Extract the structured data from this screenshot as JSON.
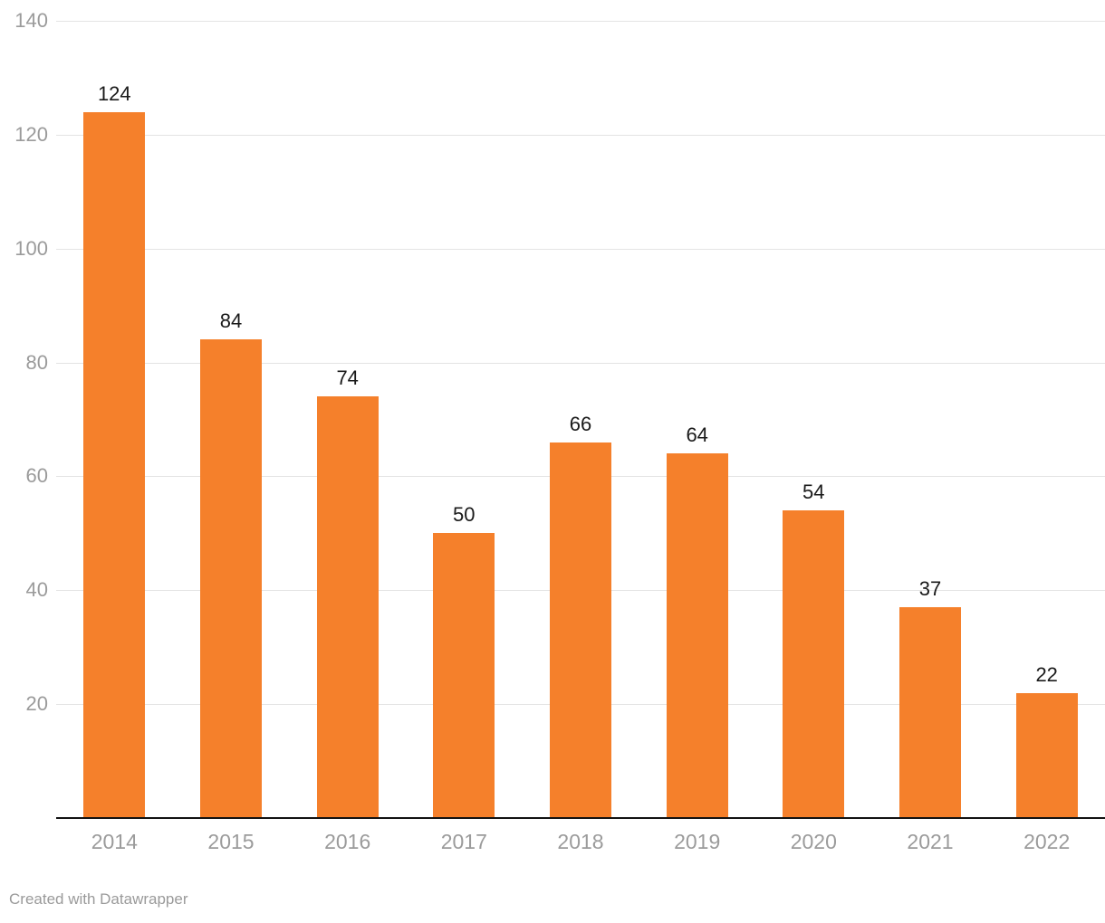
{
  "chart_data": {
    "type": "bar",
    "categories": [
      "2014",
      "2015",
      "2016",
      "2017",
      "2018",
      "2019",
      "2020",
      "2021",
      "2022"
    ],
    "values": [
      124,
      84,
      74,
      50,
      66,
      64,
      54,
      37,
      22
    ],
    "title": "",
    "xlabel": "",
    "ylabel": "",
    "ylim": [
      0,
      140
    ],
    "yticks": [
      20,
      40,
      60,
      80,
      100,
      120,
      140
    ],
    "grid": true,
    "legend": false,
    "bar_color": "#F5802B",
    "gridline_color": "#E4E4E4",
    "axis_text_color": "#9B9B9B",
    "value_label_color": "#1A1A1A",
    "baseline_color": "#121212",
    "credit_text_color": "#9A9A9A"
  },
  "footer": {
    "credit": "Created with Datawrapper"
  }
}
